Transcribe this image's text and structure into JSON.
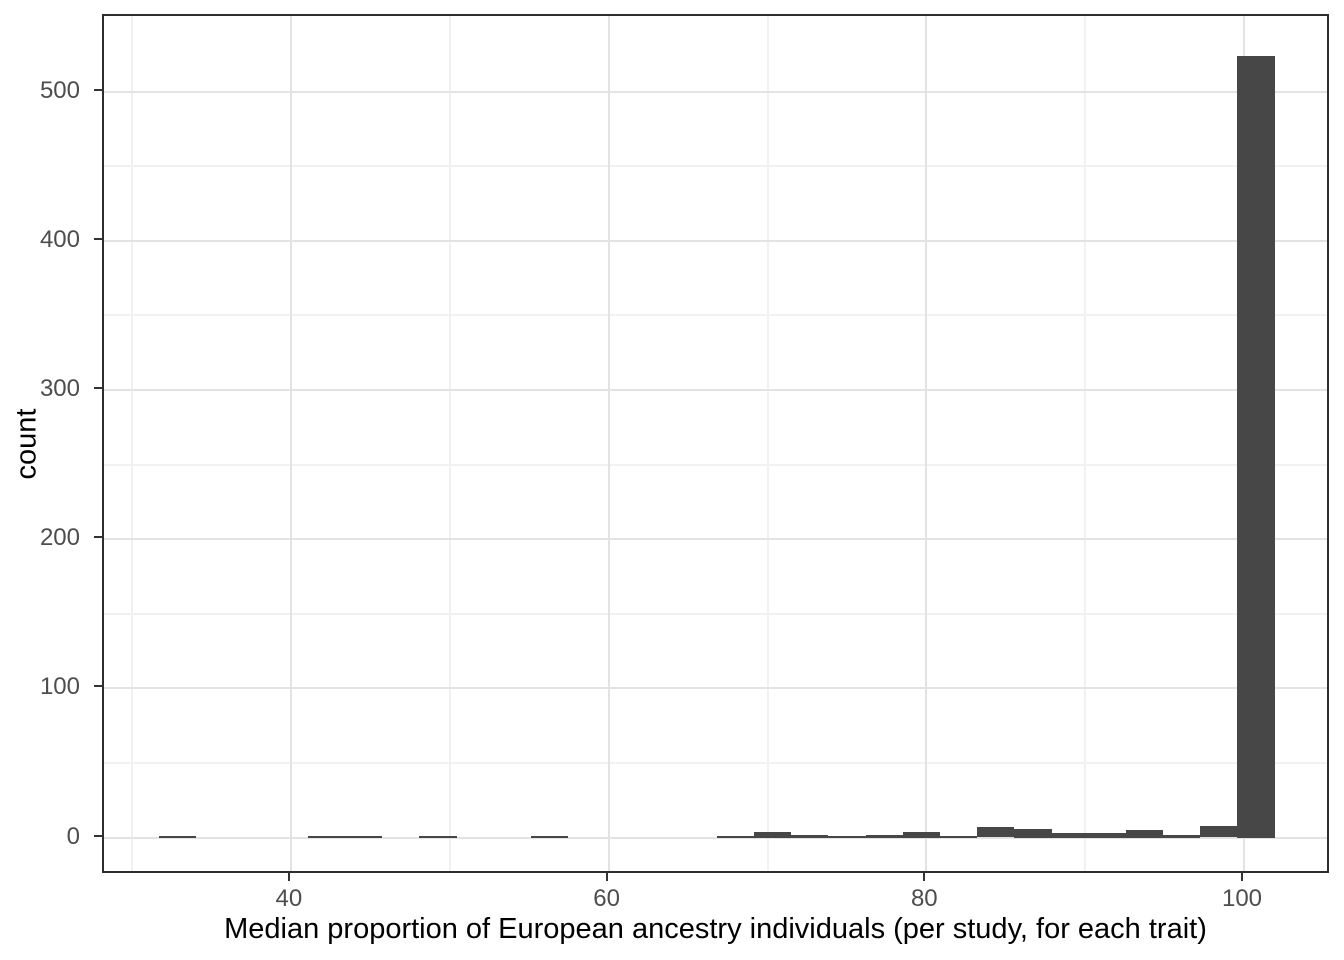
{
  "figure": {
    "background": "#FFFFFF"
  },
  "chart_data": {
    "type": "bar",
    "subtype": "histogram",
    "title": "",
    "xlabel": "Median proportion of European ancestry individuals (per study, for each trait)",
    "ylabel": "count",
    "x_ticks": [
      40,
      60,
      80,
      100
    ],
    "x_tick_labels": [
      "40",
      "60",
      "80",
      "100"
    ],
    "x_minor_ticks": [
      30,
      50,
      70,
      90
    ],
    "y_ticks": [
      0,
      100,
      200,
      300,
      400,
      500
    ],
    "y_tick_labels": [
      "0",
      "100",
      "200",
      "300",
      "400",
      "500"
    ],
    "y_minor_ticks": [
      50,
      150,
      250,
      350,
      450
    ],
    "x_domain": [
      28.23,
      105.48
    ],
    "y_domain": [
      -25.1,
      550.6
    ],
    "grid": true,
    "legend_position": "none",
    "binwidth": 2.341,
    "bins": [
      {
        "center": 32.87,
        "count": 1
      },
      {
        "center": 42.23,
        "count": 1
      },
      {
        "center": 44.58,
        "count": 1
      },
      {
        "center": 49.26,
        "count": 1
      },
      {
        "center": 56.28,
        "count": 1
      },
      {
        "center": 67.98,
        "count": 1
      },
      {
        "center": 70.33,
        "count": 4
      },
      {
        "center": 72.67,
        "count": 2
      },
      {
        "center": 75.01,
        "count": 1
      },
      {
        "center": 77.35,
        "count": 2
      },
      {
        "center": 79.69,
        "count": 4
      },
      {
        "center": 82.03,
        "count": 1
      },
      {
        "center": 84.37,
        "count": 7
      },
      {
        "center": 86.72,
        "count": 6
      },
      {
        "center": 89.06,
        "count": 3
      },
      {
        "center": 91.4,
        "count": 3
      },
      {
        "center": 93.74,
        "count": 5
      },
      {
        "center": 96.08,
        "count": 2
      },
      {
        "center": 98.42,
        "count": 8
      },
      {
        "center": 100.76,
        "count": 524
      }
    ],
    "colors": {
      "bar_fill": "#474747",
      "panel_border": "#2E2E2E",
      "grid_major": "#E3E3E3",
      "grid_minor": "#F1F1F1",
      "tick_mark": "#333333",
      "tick_label": "#4D4D4D",
      "axis_title": "#000000"
    }
  }
}
